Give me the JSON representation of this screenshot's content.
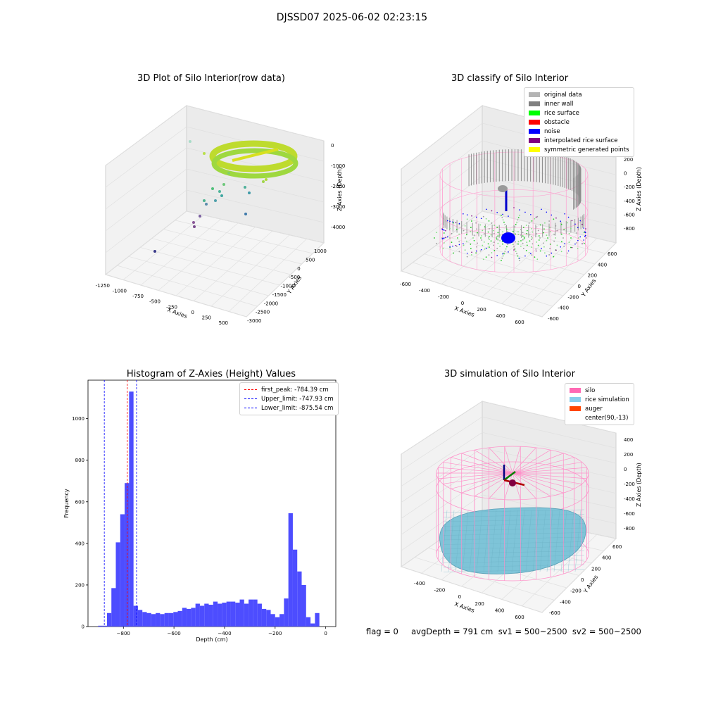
{
  "suptitle": "DJSSD07 2025-06-02 02:23:15",
  "footer": "flag = 0     avgDepth = 791 cm  sv1 = 500~2500  sv2 = 500~2500",
  "chart_data": [
    {
      "type": "scatter",
      "title": "3D Plot of Silo Interior(row data)",
      "xlabel": "X Axies",
      "ylabel": "Y Axies",
      "zlabel": "Z Axies (Depth)",
      "x_ticks": [
        "-1250",
        "-1000",
        "-750",
        "-500",
        "-250",
        "0",
        "250",
        "500"
      ],
      "y_ticks": [
        "1000",
        "500",
        "0",
        "-500",
        "-1000",
        "-1500",
        "-2000",
        "-2500",
        "-3000"
      ],
      "z_ticks": [
        "0",
        "-1000",
        "-2000",
        "-3000",
        "-4000"
      ]
    },
    {
      "type": "scatter",
      "title": "3D classify of Silo Interior",
      "xlabel": "X Axies",
      "ylabel": "Y Axies",
      "zlabel": "Z Axies (Depth)",
      "x_ticks": [
        "-600",
        "-400",
        "-200",
        "0",
        "200",
        "400",
        "600"
      ],
      "y_ticks": [
        "600",
        "400",
        "200",
        "0",
        "-200",
        "-400",
        "-600"
      ],
      "z_ticks": [
        "200",
        "0",
        "-200",
        "-400",
        "-600",
        "-800"
      ],
      "legend": [
        {
          "label": "original data",
          "color": "#b4b4b4"
        },
        {
          "label": "inner wall",
          "color": "#808080"
        },
        {
          "label": "rice surface",
          "color": "#00ff00"
        },
        {
          "label": "obstacle",
          "color": "#ff0000"
        },
        {
          "label": "noise",
          "color": "#0000ff"
        },
        {
          "label": "interpolated rice surface",
          "color": "#800080"
        },
        {
          "label": "symmetric generated points",
          "color": "#ffff00"
        }
      ]
    },
    {
      "type": "bar",
      "title": "Histogram of Z-Axies (Height) Values",
      "xlabel": "Depth (cm)",
      "ylabel": "Frequency",
      "xlim": [
        -940,
        40
      ],
      "ylim": [
        0,
        1185
      ],
      "x_ticks": [
        -800,
        -600,
        -400,
        -200,
        0
      ],
      "y_ticks": [
        0,
        200,
        400,
        600,
        800,
        1000
      ],
      "bin_start": -900,
      "bin_width": 17.5,
      "values": [
        4,
        4,
        65,
        185,
        405,
        540,
        690,
        1130,
        100,
        80,
        70,
        65,
        60,
        65,
        60,
        65,
        65,
        70,
        75,
        90,
        85,
        90,
        110,
        100,
        110,
        105,
        120,
        110,
        115,
        120,
        120,
        115,
        130,
        110,
        130,
        130,
        110,
        85,
        80,
        60,
        45,
        60,
        135,
        545,
        370,
        265,
        200,
        45,
        15,
        65
      ],
      "color": "#4d4dff",
      "vlines": [
        {
          "label": "first_peak: -784.39 cm",
          "x": -784.39,
          "color": "#ff0000"
        },
        {
          "label": "Upper_limit: -747.93 cm",
          "x": -747.93,
          "color": "#0000ff"
        },
        {
          "label": "Lower_limit: -875.54 cm",
          "x": -875.54,
          "color": "#0000ff"
        }
      ]
    },
    {
      "type": "scatter",
      "title": "3D simulation of Silo Interior",
      "xlabel": "X Axies",
      "ylabel": "Y Axies",
      "zlabel": "Z Axies (Depth)",
      "x_ticks": [
        "-400",
        "-200",
        "0",
        "200",
        "400",
        "600"
      ],
      "y_ticks": [
        "600",
        "400",
        "200",
        "0",
        "-200",
        "-400",
        "-600"
      ],
      "z_ticks": [
        "400",
        "200",
        "0",
        "-200",
        "-400",
        "-600",
        "-800"
      ],
      "legend": [
        {
          "label": "silo",
          "color": "#ff69b4"
        },
        {
          "label": "rice simulation",
          "color": "#87ceeb"
        },
        {
          "label": "auger",
          "color": "#ff4500"
        },
        {
          "label": "center(90,-13)",
          "color": ""
        }
      ]
    }
  ]
}
